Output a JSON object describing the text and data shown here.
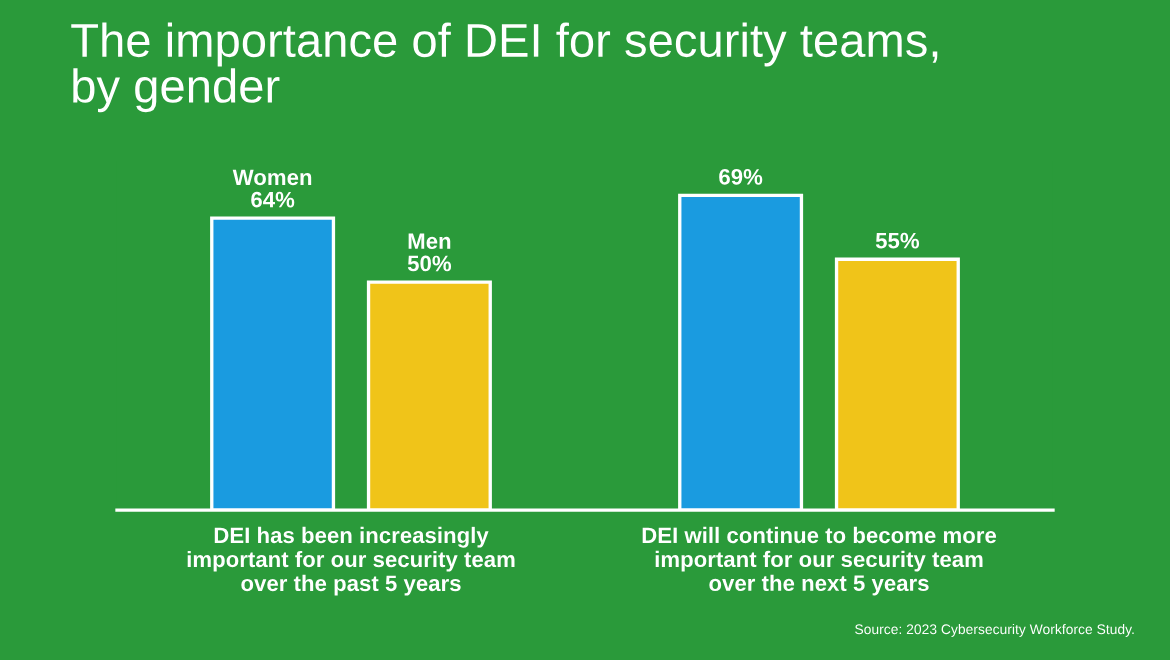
{
  "chart_data": {
    "type": "bar",
    "title": "The importance of DEI for security teams,\nby gender",
    "categories": [
      "DEI has been increasingly\nimportant for our security team\nover the past 5 years",
      "DEI will continue to become more\nimportant for our security team\nover the next 5 years"
    ],
    "series": [
      {
        "name": "Women",
        "color": "#1a9be0",
        "values": [
          64,
          69
        ],
        "value_labels": [
          "64%",
          "69%"
        ]
      },
      {
        "name": "Men",
        "color": "#f0c419",
        "values": [
          50,
          55
        ],
        "value_labels": [
          "50%",
          "55%"
        ]
      }
    ],
    "annotations": [
      "Source: 2023 Cybersecurity Workforce Study."
    ]
  }
}
